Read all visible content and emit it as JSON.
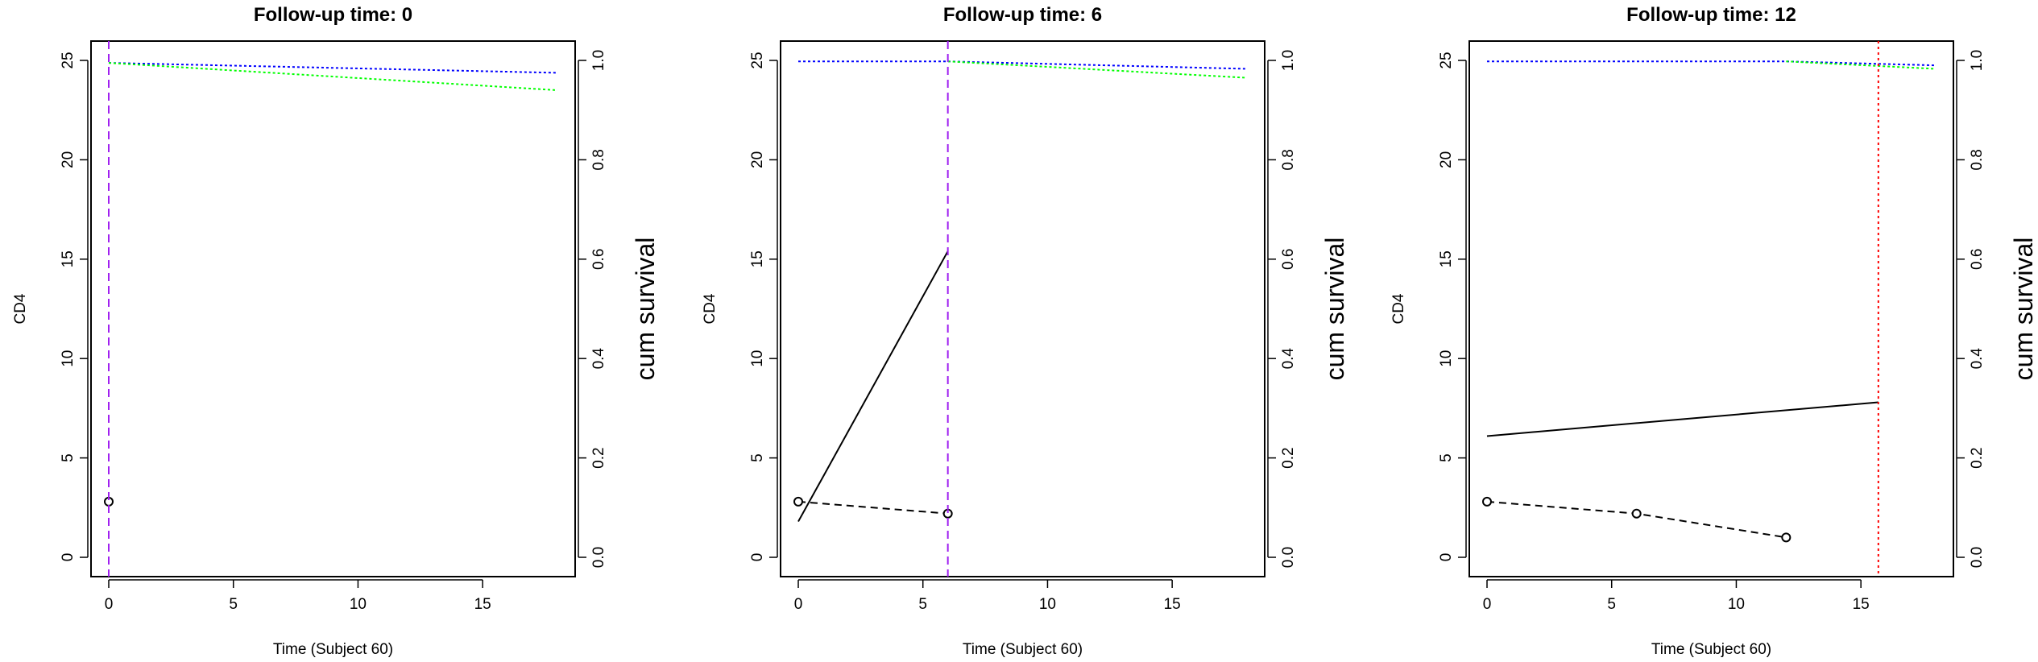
{
  "figure": {
    "xlabel": "Time (Subject 60)",
    "ylabel_left": "CD4",
    "ylabel_right": "cum survival"
  },
  "chart_data": [
    {
      "type": "line",
      "title": "Follow-up time: 0",
      "xlabel": "Time (Subject 60)",
      "ylabel": "CD4",
      "ylabel_right": "cum survival",
      "xlim": [
        0,
        18
      ],
      "ylim": [
        0,
        25
      ],
      "ylim_right": [
        0,
        1
      ],
      "xticks": [
        0,
        5,
        10,
        15
      ],
      "yticks": [
        0,
        5,
        10,
        15,
        20,
        25
      ],
      "yticks_right": [
        "0.0",
        "0.2",
        "0.4",
        "0.6",
        "0.8",
        "1.0"
      ],
      "observed": {
        "x": [
          0
        ],
        "y": [
          2.8
        ],
        "style": "points"
      },
      "fitted": {
        "x": [],
        "y": []
      },
      "survival": [
        {
          "color": "#0000ff",
          "x": [
            0,
            18
          ],
          "y": [
            0.995,
            0.975
          ]
        },
        {
          "color": "#00ff00",
          "x": [
            0,
            18
          ],
          "y": [
            0.995,
            0.94
          ]
        }
      ],
      "vline": {
        "x": 0,
        "color": "#a020f0",
        "style": "dashed"
      }
    },
    {
      "type": "line",
      "title": "Follow-up time: 6",
      "xlabel": "Time (Subject 60)",
      "ylabel": "CD4",
      "ylabel_right": "cum survival",
      "xlim": [
        0,
        18
      ],
      "ylim": [
        0,
        25
      ],
      "ylim_right": [
        0,
        1
      ],
      "xticks": [
        0,
        5,
        10,
        15
      ],
      "yticks": [
        0,
        5,
        10,
        15,
        20,
        25
      ],
      "yticks_right": [
        "0.0",
        "0.2",
        "0.4",
        "0.6",
        "0.8",
        "1.0"
      ],
      "observed": {
        "x": [
          0,
          6
        ],
        "y": [
          2.8,
          2.2
        ],
        "style": "dashed-with-points"
      },
      "fitted": {
        "x": [
          0,
          6
        ],
        "y": [
          1.8,
          15.4
        ]
      },
      "survival": [
        {
          "color": "#0000ff",
          "x": [
            0,
            6,
            18
          ],
          "y": [
            0.998,
            0.998,
            0.983
          ]
        },
        {
          "color": "#00ff00",
          "x": [
            6,
            18
          ],
          "y": [
            0.998,
            0.965
          ]
        }
      ],
      "vline": {
        "x": 6,
        "color": "#a020f0",
        "style": "dashed"
      }
    },
    {
      "type": "line",
      "title": "Follow-up time: 12",
      "xlabel": "Time (Subject 60)",
      "ylabel": "CD4",
      "ylabel_right": "cum survival",
      "xlim": [
        0,
        18
      ],
      "ylim": [
        0,
        25
      ],
      "ylim_right": [
        0,
        1
      ],
      "xticks": [
        0,
        5,
        10,
        15
      ],
      "yticks": [
        0,
        5,
        10,
        15,
        20,
        25
      ],
      "yticks_right": [
        "0.0",
        "0.2",
        "0.4",
        "0.6",
        "0.8",
        "1.0"
      ],
      "observed": {
        "x": [
          0,
          6,
          12
        ],
        "y": [
          2.8,
          2.2,
          1.0
        ],
        "style": "dashed-with-points"
      },
      "fitted": {
        "x": [
          0,
          15.7
        ],
        "y": [
          6.1,
          7.8
        ]
      },
      "survival": [
        {
          "color": "#0000ff",
          "x": [
            0,
            12,
            18
          ],
          "y": [
            0.998,
            0.998,
            0.99
          ]
        },
        {
          "color": "#00ff00",
          "x": [
            12,
            18
          ],
          "y": [
            0.998,
            0.983
          ]
        }
      ],
      "vline": {
        "x": 15.7,
        "color": "#ff0000",
        "style": "dotted"
      }
    }
  ]
}
